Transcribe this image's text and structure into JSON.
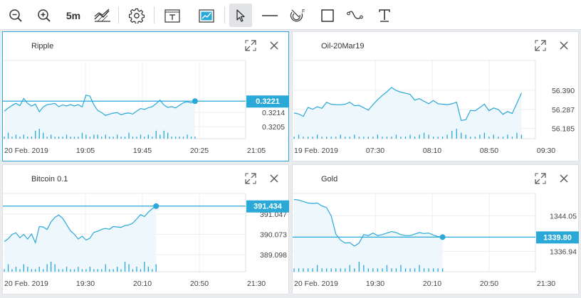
{
  "toolbar": {
    "timeframe_label": "5m",
    "colors": {
      "icon": "#333333",
      "accent": "#2aa8d8"
    }
  },
  "charts": [
    {
      "title": "Ripple",
      "selected": true,
      "chart_data": {
        "type": "line",
        "title": "Ripple",
        "xlabel": "",
        "ylabel": "",
        "x_tick_labels": [
          "20 Feb. 2019",
          "19:05",
          "19:45",
          "20:25",
          "21:05"
        ],
        "y_tick_labels": [
          "0.3214",
          "0.3205"
        ],
        "y_ticks": [
          0.3214,
          0.3205
        ],
        "ylim": [
          0.31975,
          0.32465
        ],
        "x_slots": 62,
        "values": [
          0.32147,
          0.32167,
          0.32183,
          0.32197,
          0.32182,
          0.32227,
          0.32197,
          0.3218,
          0.32192,
          0.32144,
          0.32174,
          0.32188,
          0.32192,
          0.32196,
          0.32176,
          0.32186,
          0.3218,
          0.32189,
          0.3218,
          0.32188,
          0.32174,
          0.32248,
          0.32242,
          0.32188,
          0.32152,
          0.32139,
          0.3212,
          0.32129,
          0.32135,
          0.32139,
          0.32125,
          0.32133,
          0.32136,
          0.32129,
          0.32148,
          0.32164,
          0.32158,
          0.32169,
          0.32176,
          0.32194,
          0.32217,
          0.32186,
          0.32171,
          0.32176,
          0.32168,
          0.32184,
          0.322,
          0.32206,
          0.32199,
          0.3221
        ],
        "volume": [
          1,
          3,
          1,
          2,
          1,
          2,
          1,
          1,
          4,
          5,
          3,
          1,
          2,
          1,
          1,
          1,
          2,
          1,
          1,
          1,
          3,
          2,
          1,
          2,
          2,
          1,
          2,
          1,
          1,
          2,
          1,
          1,
          3,
          1,
          1,
          2,
          1,
          2,
          1,
          4,
          2,
          4,
          3,
          1,
          1,
          1,
          1,
          2,
          1,
          1
        ],
        "last_value_label": "0.3221",
        "last_value": 0.3221,
        "series_color": "#2aa8d8"
      }
    },
    {
      "title": "Oil-20Mar19",
      "selected": false,
      "chart_data": {
        "type": "line",
        "title": "Oil-20Mar19",
        "xlabel": "",
        "ylabel": "",
        "x_tick_labels": [
          "19 Feb. 2019",
          "07:30",
          "08:10",
          "08:50",
          "09:30"
        ],
        "y_tick_labels": [
          "56.390",
          "56.287",
          "56.185"
        ],
        "y_ticks": [
          56.39,
          56.287,
          56.185
        ],
        "ylim": [
          56.13,
          56.55
        ],
        "x_slots": 52,
        "values": [
          56.268,
          56.263,
          56.25,
          56.298,
          56.288,
          56.302,
          56.293,
          56.325,
          56.315,
          56.313,
          56.312,
          56.315,
          56.326,
          56.307,
          56.309,
          56.296,
          56.283,
          56.313,
          56.339,
          56.362,
          56.382,
          56.405,
          56.389,
          56.38,
          56.374,
          56.368,
          56.337,
          56.345,
          56.331,
          56.318,
          56.335,
          56.318,
          56.315,
          56.313,
          56.317,
          56.326,
          56.228,
          56.232,
          56.282,
          56.28,
          56.297,
          56.315,
          56.28,
          56.295,
          56.287,
          56.261,
          56.276,
          56.265,
          56.32,
          56.375
        ],
        "volume": [
          1,
          2,
          1,
          1,
          1,
          2,
          1,
          1,
          1,
          1,
          2,
          1,
          1,
          2,
          1,
          1,
          1,
          1,
          2,
          1,
          1,
          1,
          2,
          1,
          1,
          2,
          1,
          2,
          3,
          2,
          1,
          1,
          1,
          2,
          4,
          5,
          3,
          2,
          1,
          1,
          2,
          3,
          1,
          2,
          1,
          1,
          2,
          1,
          3,
          2
        ],
        "series_color": "#2aa8d8"
      }
    },
    {
      "title": "Bitcoin 0.1",
      "selected": false,
      "chart_data": {
        "type": "line",
        "title": "Bitcoin 0.1",
        "xlabel": "",
        "ylabel": "",
        "x_tick_labels": [
          "20 Feb. 2019",
          "19:30",
          "20:10",
          "20:50",
          "21:30"
        ],
        "y_tick_labels": [
          "391.047",
          "390.073",
          "389.098"
        ],
        "y_ticks": [
          391.047,
          390.073,
          389.098
        ],
        "ylim": [
          388.28,
          392.04
        ],
        "x_slots": 62,
        "values": [
          389.73,
          389.86,
          390.07,
          390.15,
          389.91,
          390.07,
          389.85,
          390.09,
          389.67,
          390.45,
          390.43,
          390.31,
          390.67,
          390.89,
          391.0,
          390.85,
          390.55,
          390.24,
          390.08,
          389.85,
          389.99,
          389.8,
          389.89,
          390.17,
          390.23,
          390.31,
          390.36,
          390.32,
          390.45,
          390.43,
          390.41,
          390.5,
          390.53,
          390.61,
          390.81,
          391.02,
          390.93,
          391.14,
          391.31,
          391.43
        ],
        "volume": [
          1,
          3,
          1,
          2,
          1,
          3,
          2,
          1,
          1,
          2,
          1,
          3,
          4,
          3,
          1,
          1,
          2,
          1,
          1,
          2,
          1,
          1,
          2,
          1,
          1,
          1,
          3,
          1,
          1,
          2,
          1,
          4,
          3,
          1,
          2,
          1,
          4,
          2,
          1,
          3
        ],
        "last_value_label": "391.434",
        "last_value": 391.434,
        "series_color": "#2aa8d8"
      }
    },
    {
      "title": "Gold",
      "selected": false,
      "chart_data": {
        "type": "line",
        "title": "Gold",
        "xlabel": "",
        "ylabel": "",
        "x_tick_labels": [
          "20 Feb. 2019",
          "19:30",
          "20:10",
          "20:50",
          "21:30"
        ],
        "y_tick_labels": [
          "1344.05",
          "1336.94"
        ],
        "y_ticks": [
          1344.05,
          1336.94
        ],
        "ylim": [
          1332.9,
          1348.5
        ],
        "x_slots": 52,
        "values": [
          1347.3,
          1347.2,
          1346.9,
          1346.6,
          1346.5,
          1346.6,
          1346.0,
          1345.7,
          1344.0,
          1340.4,
          1339.2,
          1338.6,
          1338.7,
          1338.0,
          1338.6,
          1340.3,
          1340.1,
          1340.6,
          1340.1,
          1340.3,
          1340.6,
          1340.9,
          1340.7,
          1340.3,
          1340.1,
          1340.1,
          1340.4,
          1340.7,
          1340.5,
          1340.6,
          1340.2,
          1339.9,
          1339.8
        ],
        "volume": [
          1,
          1,
          1,
          1,
          1,
          2,
          1,
          1,
          1,
          1,
          1,
          1,
          2,
          1,
          3,
          2,
          1,
          1,
          1,
          1,
          2,
          1,
          1,
          2,
          1,
          1,
          1,
          2,
          1,
          1,
          1,
          1,
          1
        ],
        "last_value_label": "1339.80",
        "last_value": 1339.8,
        "series_color": "#2aa8d8"
      }
    }
  ]
}
